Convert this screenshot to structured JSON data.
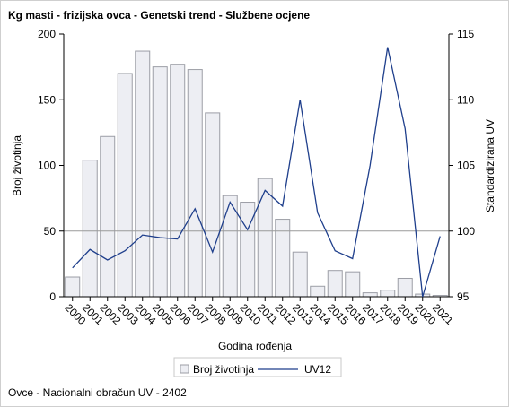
{
  "title": "Kg masti - frizijska ovca - Genetski trend - Službene ocjene",
  "footnote": "Ovce - Nacionalni obračun UV - 2402",
  "colors": {
    "bar_fill": "#edeef3",
    "bar_stroke": "#9c9ea6",
    "line": "#1f3f8c",
    "reference_line": "#9a9a9a",
    "axis": "#000000"
  },
  "chart_data": {
    "type": "bar",
    "title": "Kg masti - frizijska ovca - Genetski trend - Službene ocjene",
    "xlabel": "Godina rođenja",
    "ylabel": "Broj životinja",
    "y2label": "Standardizirana UV",
    "categories": [
      "2000",
      "2001",
      "2002",
      "2003",
      "2004",
      "2005",
      "2006",
      "2007",
      "2008",
      "2009",
      "2010",
      "2011",
      "2012",
      "2013",
      "2014",
      "2015",
      "2016",
      "2017",
      "2018",
      "2019",
      "2020",
      "2021"
    ],
    "ylim": [
      0,
      200
    ],
    "yticks": [
      0,
      50,
      100,
      150,
      200
    ],
    "y2lim": [
      95,
      115
    ],
    "y2ticks": [
      95,
      100,
      105,
      110,
      115
    ],
    "reference_line_y2": 100,
    "grid": false,
    "legend_position": "bottom",
    "series": [
      {
        "name": "Broj životinja",
        "type": "bar",
        "axis": "left",
        "values": [
          15,
          104,
          122,
          170,
          187,
          175,
          177,
          173,
          140,
          77,
          72,
          90,
          59,
          34,
          8,
          20,
          19,
          3,
          5,
          14,
          2,
          1
        ]
      },
      {
        "name": "UV12",
        "type": "line",
        "axis": "right",
        "values": [
          97.2,
          98.6,
          97.8,
          98.5,
          99.7,
          99.5,
          99.4,
          101.7,
          98.4,
          102.2,
          100.1,
          103.1,
          101.9,
          110.0,
          101.4,
          98.5,
          97.9,
          105.0,
          114.0,
          107.8,
          95.0,
          99.6
        ]
      }
    ]
  }
}
